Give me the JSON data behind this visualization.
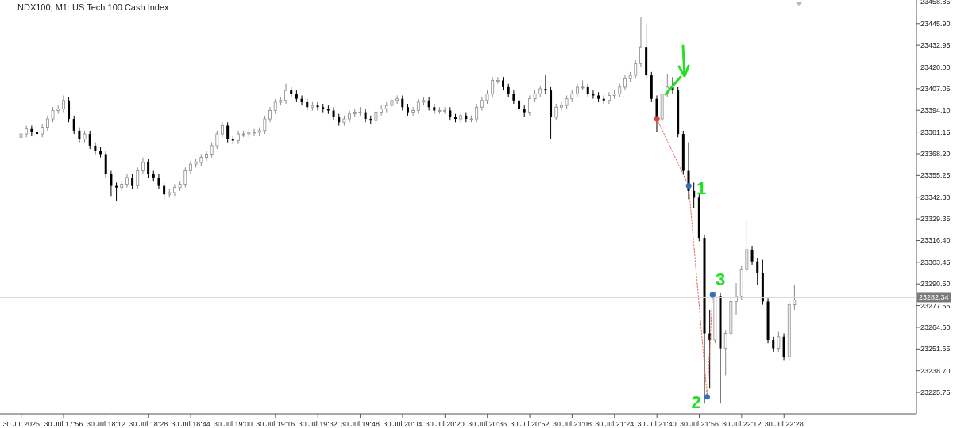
{
  "chart_data": {
    "type": "candlestick",
    "title": "NDX100, M1: US Tech 100 Cash Index",
    "x": [
      "2025-07-30T17:40",
      "2025-07-30T17:42",
      "2025-07-30T17:44",
      "2025-07-30T17:46",
      "2025-07-30T17:48",
      "2025-07-30T17:50",
      "2025-07-30T17:52",
      "2025-07-30T17:54",
      "2025-07-30T17:56",
      "2025-07-30T17:58",
      "2025-07-30T18:00",
      "2025-07-30T18:02",
      "2025-07-30T18:04",
      "2025-07-30T18:06",
      "2025-07-30T18:08",
      "2025-07-30T18:10",
      "2025-07-30T18:12",
      "2025-07-30T18:14",
      "2025-07-30T18:16",
      "2025-07-30T18:18",
      "2025-07-30T18:20",
      "2025-07-30T18:22",
      "2025-07-30T18:24",
      "2025-07-30T18:26",
      "2025-07-30T18:28",
      "2025-07-30T18:30",
      "2025-07-30T18:32",
      "2025-07-30T18:34",
      "2025-07-30T18:36",
      "2025-07-30T18:38",
      "2025-07-30T18:40",
      "2025-07-30T18:42",
      "2025-07-30T18:44",
      "2025-07-30T18:46",
      "2025-07-30T18:48",
      "2025-07-30T18:50",
      "2025-07-30T18:52",
      "2025-07-30T18:54",
      "2025-07-30T18:56",
      "2025-07-30T18:58",
      "2025-07-30T19:00",
      "2025-07-30T19:02",
      "2025-07-30T19:04",
      "2025-07-30T19:06",
      "2025-07-30T19:08",
      "2025-07-30T19:10",
      "2025-07-30T19:12",
      "2025-07-30T19:14",
      "2025-07-30T19:16",
      "2025-07-30T19:18",
      "2025-07-30T19:20",
      "2025-07-30T19:22",
      "2025-07-30T19:24",
      "2025-07-30T19:26",
      "2025-07-30T19:28",
      "2025-07-30T19:30",
      "2025-07-30T19:32",
      "2025-07-30T19:34",
      "2025-07-30T19:36",
      "2025-07-30T19:38",
      "2025-07-30T19:40",
      "2025-07-30T19:42",
      "2025-07-30T19:44",
      "2025-07-30T19:46",
      "2025-07-30T19:48",
      "2025-07-30T19:50",
      "2025-07-30T19:52",
      "2025-07-30T19:54",
      "2025-07-30T19:56",
      "2025-07-30T19:58",
      "2025-07-30T20:00",
      "2025-07-30T20:02",
      "2025-07-30T20:04",
      "2025-07-30T20:06",
      "2025-07-30T20:08",
      "2025-07-30T20:10",
      "2025-07-30T20:12",
      "2025-07-30T20:14",
      "2025-07-30T20:16",
      "2025-07-30T20:18",
      "2025-07-30T20:20",
      "2025-07-30T20:22",
      "2025-07-30T20:24",
      "2025-07-30T20:26",
      "2025-07-30T20:28",
      "2025-07-30T20:30",
      "2025-07-30T20:32",
      "2025-07-30T20:34",
      "2025-07-30T20:36",
      "2025-07-30T20:38",
      "2025-07-30T20:40",
      "2025-07-30T20:42",
      "2025-07-30T20:44",
      "2025-07-30T20:46",
      "2025-07-30T20:48",
      "2025-07-30T20:50",
      "2025-07-30T20:52",
      "2025-07-30T20:54",
      "2025-07-30T20:56",
      "2025-07-30T20:58",
      "2025-07-30T21:00",
      "2025-07-30T21:02",
      "2025-07-30T21:04",
      "2025-07-30T21:06",
      "2025-07-30T21:08",
      "2025-07-30T21:10",
      "2025-07-30T21:12",
      "2025-07-30T21:14",
      "2025-07-30T21:16",
      "2025-07-30T21:18",
      "2025-07-30T21:20",
      "2025-07-30T21:22",
      "2025-07-30T21:24",
      "2025-07-30T21:26",
      "2025-07-30T21:28",
      "2025-07-30T21:30",
      "2025-07-30T21:32",
      "2025-07-30T21:34",
      "2025-07-30T21:36",
      "2025-07-30T21:38",
      "2025-07-30T21:40",
      "2025-07-30T21:42",
      "2025-07-30T21:44",
      "2025-07-30T21:46",
      "2025-07-30T21:48",
      "2025-07-30T21:50",
      "2025-07-30T21:52",
      "2025-07-30T21:54",
      "2025-07-30T21:56",
      "2025-07-30T21:58",
      "2025-07-30T22:00",
      "2025-07-30T22:02",
      "2025-07-30T22:04",
      "2025-07-30T22:06",
      "2025-07-30T22:08",
      "2025-07-30T22:10",
      "2025-07-30T22:12",
      "2025-07-30T22:14",
      "2025-07-30T22:16",
      "2025-07-30T22:18",
      "2025-07-30T22:20",
      "2025-07-30T22:22",
      "2025-07-30T22:24",
      "2025-07-30T22:26",
      "2025-07-30T22:28",
      "2025-07-30T22:30",
      "2025-07-30T22:32"
    ],
    "ohlc": [
      [
        23378,
        23382,
        23376,
        23380
      ],
      [
        23380,
        23385,
        23378,
        23383
      ],
      [
        23383,
        23385,
        23379,
        23381
      ],
      [
        23381,
        23383,
        23377,
        23380
      ],
      [
        23380,
        23386,
        23378,
        23384
      ],
      [
        23384,
        23391,
        23382,
        23389
      ],
      [
        23389,
        23396,
        23387,
        23394
      ],
      [
        23394,
        23397,
        23392,
        23395
      ],
      [
        23395,
        23403,
        23393,
        23400
      ],
      [
        23400,
        23402,
        23387,
        23389
      ],
      [
        23389,
        23391,
        23380,
        23382
      ],
      [
        23382,
        23384,
        23375,
        23377
      ],
      [
        23377,
        23382,
        23375,
        23380
      ],
      [
        23380,
        23382,
        23371,
        23373
      ],
      [
        23373,
        23375,
        23368,
        23370
      ],
      [
        23370,
        23372,
        23366,
        23368
      ],
      [
        23368,
        23370,
        23354,
        23356
      ],
      [
        23356,
        23358,
        23343,
        23349
      ],
      [
        23349,
        23351,
        23340,
        23348
      ],
      [
        23348,
        23352,
        23346,
        23350
      ],
      [
        23350,
        23356,
        23348,
        23354
      ],
      [
        23354,
        23356,
        23347,
        23349
      ],
      [
        23349,
        23360,
        23347,
        23358
      ],
      [
        23358,
        23366,
        23356,
        23363
      ],
      [
        23363,
        23365,
        23354,
        23356
      ],
      [
        23356,
        23358,
        23352,
        23354
      ],
      [
        23354,
        23356,
        23347,
        23349
      ],
      [
        23349,
        23351,
        23341,
        23344
      ],
      [
        23344,
        23347,
        23342,
        23345
      ],
      [
        23345,
        23350,
        23343,
        23348
      ],
      [
        23348,
        23352,
        23346,
        23350
      ],
      [
        23350,
        23360,
        23348,
        23358
      ],
      [
        23358,
        23364,
        23356,
        23362
      ],
      [
        23362,
        23365,
        23360,
        23363
      ],
      [
        23363,
        23368,
        23361,
        23366
      ],
      [
        23366,
        23370,
        23364,
        23368
      ],
      [
        23368,
        23375,
        23366,
        23373
      ],
      [
        23373,
        23382,
        23371,
        23380
      ],
      [
        23380,
        23387,
        23378,
        23385
      ],
      [
        23385,
        23387,
        23375,
        23377
      ],
      [
        23377,
        23379,
        23374,
        23376
      ],
      [
        23376,
        23382,
        23374,
        23380
      ],
      [
        23380,
        23382,
        23378,
        23380
      ],
      [
        23380,
        23383,
        23378,
        23381
      ],
      [
        23381,
        23383,
        23379,
        23381
      ],
      [
        23381,
        23384,
        23379,
        23382
      ],
      [
        23382,
        23391,
        23380,
        23389
      ],
      [
        23389,
        23396,
        23387,
        23394
      ],
      [
        23394,
        23401,
        23392,
        23399
      ],
      [
        23399,
        23402,
        23397,
        23400
      ],
      [
        23400,
        23410,
        23398,
        23406
      ],
      [
        23406,
        23408,
        23402,
        23404
      ],
      [
        23404,
        23406,
        23399,
        23401
      ],
      [
        23401,
        23403,
        23397,
        23399
      ],
      [
        23399,
        23401,
        23394,
        23396
      ],
      [
        23396,
        23399,
        23394,
        23397
      ],
      [
        23397,
        23399,
        23394,
        23396
      ],
      [
        23396,
        23398,
        23393,
        23395
      ],
      [
        23395,
        23397,
        23392,
        23394
      ],
      [
        23394,
        23396,
        23388,
        23390
      ],
      [
        23390,
        23392,
        23385,
        23387
      ],
      [
        23387,
        23391,
        23385,
        23389
      ],
      [
        23389,
        23394,
        23387,
        23392
      ],
      [
        23392,
        23395,
        23390,
        23393
      ],
      [
        23393,
        23396,
        23391,
        23393
      ],
      [
        23393,
        23395,
        23387,
        23389
      ],
      [
        23389,
        23391,
        23386,
        23388
      ],
      [
        23388,
        23395,
        23386,
        23393
      ],
      [
        23393,
        23397,
        23391,
        23395
      ],
      [
        23395,
        23399,
        23393,
        23397
      ],
      [
        23397,
        23402,
        23395,
        23400
      ],
      [
        23400,
        23403,
        23398,
        23401
      ],
      [
        23401,
        23403,
        23394,
        23396
      ],
      [
        23396,
        23398,
        23391,
        23393
      ],
      [
        23393,
        23396,
        23391,
        23394
      ],
      [
        23394,
        23401,
        23392,
        23399
      ],
      [
        23399,
        23402,
        23397,
        23400
      ],
      [
        23400,
        23402,
        23394,
        23396
      ],
      [
        23396,
        23398,
        23392,
        23394
      ],
      [
        23394,
        23396,
        23392,
        23394
      ],
      [
        23394,
        23396,
        23392,
        23394
      ],
      [
        23394,
        23396,
        23388,
        23390
      ],
      [
        23390,
        23392,
        23387,
        23389
      ],
      [
        23389,
        23393,
        23387,
        23391
      ],
      [
        23391,
        23393,
        23387,
        23389
      ],
      [
        23389,
        23391,
        23387,
        23389
      ],
      [
        23389,
        23398,
        23387,
        23396
      ],
      [
        23396,
        23402,
        23394,
        23400
      ],
      [
        23400,
        23406,
        23398,
        23404
      ],
      [
        23404,
        23414,
        23402,
        23412
      ],
      [
        23412,
        23414,
        23410,
        23412
      ],
      [
        23412,
        23414,
        23406,
        23408
      ],
      [
        23408,
        23410,
        23402,
        23404
      ],
      [
        23404,
        23406,
        23398,
        23400
      ],
      [
        23400,
        23402,
        23393,
        23395
      ],
      [
        23395,
        23397,
        23390,
        23393
      ],
      [
        23393,
        23403,
        23391,
        23401
      ],
      [
        23401,
        23406,
        23399,
        23404
      ],
      [
        23404,
        23409,
        23402,
        23407
      ],
      [
        23407,
        23415,
        23404,
        23406
      ],
      [
        23406,
        23408,
        23377,
        23390
      ],
      [
        23390,
        23398,
        23388,
        23396
      ],
      [
        23396,
        23399,
        23394,
        23397
      ],
      [
        23397,
        23403,
        23395,
        23401
      ],
      [
        23401,
        23406,
        23399,
        23404
      ],
      [
        23404,
        23410,
        23402,
        23408
      ],
      [
        23408,
        23412,
        23406,
        23408
      ],
      [
        23408,
        23410,
        23402,
        23404
      ],
      [
        23404,
        23406,
        23401,
        23403
      ],
      [
        23403,
        23405,
        23399,
        23401
      ],
      [
        23401,
        23403,
        23398,
        23400
      ],
      [
        23400,
        23405,
        23398,
        23403
      ],
      [
        23403,
        23406,
        23401,
        23404
      ],
      [
        23404,
        23410,
        23402,
        23408
      ],
      [
        23408,
        23415,
        23406,
        23413
      ],
      [
        23413,
        23417,
        23411,
        23415
      ],
      [
        23415,
        23424,
        23413,
        23422
      ],
      [
        23422,
        23450,
        23420,
        23432
      ],
      [
        23432,
        23446,
        23413,
        23415
      ],
      [
        23415,
        23417,
        23399,
        23401
      ],
      [
        23401,
        23403,
        23381,
        23389
      ],
      [
        23389,
        23406,
        23387,
        23404
      ],
      [
        23404,
        23416,
        23402,
        23408
      ],
      [
        23408,
        23414,
        23404,
        23406
      ],
      [
        23406,
        23408,
        23378,
        23380
      ],
      [
        23380,
        23382,
        23356,
        23358
      ],
      [
        23358,
        23375,
        23341,
        23346
      ],
      [
        23346,
        23351,
        23336,
        23342
      ],
      [
        23342,
        23344,
        23316,
        23318
      ],
      [
        23318,
        23320,
        23219,
        23261
      ],
      [
        23261,
        23275,
        23228,
        23257
      ],
      [
        23257,
        23286,
        23255,
        23283
      ],
      [
        23283,
        23285,
        23219,
        23252
      ],
      [
        23252,
        23263,
        23236,
        23261
      ],
      [
        23261,
        23282,
        23259,
        23280
      ],
      [
        23280,
        23291,
        23272,
        23283
      ],
      [
        23283,
        23301,
        23281,
        23299
      ],
      [
        23299,
        23328,
        23297,
        23311
      ],
      [
        23311,
        23313,
        23302,
        23304
      ],
      [
        23304,
        23306,
        23290,
        23297
      ],
      [
        23297,
        23305,
        23278,
        23280
      ],
      [
        23280,
        23282,
        23255,
        23257
      ],
      [
        23257,
        23259,
        23250,
        23252
      ],
      [
        23252,
        23262,
        23250,
        23259
      ],
      [
        23259,
        23261,
        23245,
        23247
      ],
      [
        23247,
        23280,
        23245,
        23278
      ],
      [
        23278,
        23290,
        23275,
        23281
      ]
    ],
    "series": [
      {
        "type": "line",
        "x": [
          "2025-07-30T21:40",
          "2025-07-30T21:52",
          "2025-07-30T21:59",
          "2025-07-30T22:01"
        ],
        "values": [
          23389,
          23349,
          23223,
          23284
        ],
        "color": "#e86a5a",
        "colors": [
          "#e04040",
          "#3070c0",
          "#3070c0",
          "#3070c0"
        ],
        "marker": "circle",
        "line_style": "dotted"
      }
    ],
    "xlim": [
      "2025-07-30T17:32",
      "2025-07-30T23:18"
    ],
    "xticks": [
      {
        "value": "2025-07-30T17:40",
        "label": "30 Jul 2025"
      },
      {
        "value": "2025-07-30T17:56",
        "label": "30 Jul 17:56"
      },
      {
        "value": "2025-07-30T18:12",
        "label": "30 Jul 18:12"
      },
      {
        "value": "2025-07-30T18:28",
        "label": "30 Jul 18:28"
      },
      {
        "value": "2025-07-30T18:44",
        "label": "30 Jul 18:44"
      },
      {
        "value": "2025-07-30T19:00",
        "label": "30 Jul 19:00"
      },
      {
        "value": "2025-07-30T19:16",
        "label": "30 Jul 19:16"
      },
      {
        "value": "2025-07-30T19:32",
        "label": "30 Jul 19:32"
      },
      {
        "value": "2025-07-30T19:48",
        "label": "30 Jul 19:48"
      },
      {
        "value": "2025-07-30T20:04",
        "label": "30 Jul 20:04"
      },
      {
        "value": "2025-07-30T20:20",
        "label": "30 Jul 20:20"
      },
      {
        "value": "2025-07-30T20:36",
        "label": "30 Jul 20:36"
      },
      {
        "value": "2025-07-30T20:52",
        "label": "30 Jul 20:52"
      },
      {
        "value": "2025-07-30T21:08",
        "label": "30 Jul 21:08"
      },
      {
        "value": "2025-07-30T21:24",
        "label": "30 Jul 21:24"
      },
      {
        "value": "2025-07-30T21:40",
        "label": "30 Jul 21:40"
      },
      {
        "value": "2025-07-30T21:56",
        "label": "30 Jul 21:56"
      },
      {
        "value": "2025-07-30T22:12",
        "label": "30 Jul 22:12"
      },
      {
        "value": "2025-07-30T22:28",
        "label": "30 Jul 22:28"
      }
    ],
    "ylim": [
      23213,
      23460
    ],
    "yticks": [
      {
        "value": 23225.75,
        "label": "23225.75"
      },
      {
        "value": 23238.7,
        "label": "23238.70"
      },
      {
        "value": 23251.65,
        "label": "23251.65"
      },
      {
        "value": 23264.6,
        "label": "23264.60"
      },
      {
        "value": 23277.55,
        "label": "23277.55"
      },
      {
        "value": 23290.5,
        "label": "23290.50"
      },
      {
        "value": 23303.45,
        "label": "23303.45"
      },
      {
        "value": 23316.4,
        "label": "23316.40"
      },
      {
        "value": 23329.35,
        "label": "23329.35"
      },
      {
        "value": 23342.3,
        "label": "23342.30"
      },
      {
        "value": 23355.25,
        "label": "23355.25"
      },
      {
        "value": 23368.2,
        "label": "23368.20"
      },
      {
        "value": 23381.15,
        "label": "23381.15"
      },
      {
        "value": 23394.1,
        "label": "23394.10"
      },
      {
        "value": 23407.05,
        "label": "23407.05"
      },
      {
        "value": 23420,
        "label": "23420.00"
      },
      {
        "value": 23432.95,
        "label": "23432.95"
      },
      {
        "value": 23445.9,
        "label": "23445.90"
      },
      {
        "value": 23458.85,
        "label": "23458.85"
      }
    ],
    "ref_lines": [
      {
        "axis": "y",
        "value": 23282.34,
        "label": "23282.34",
        "color": "#d8d8d8"
      }
    ],
    "annotations": [
      {
        "text": "1",
        "x": "2025-07-30T21:52",
        "y": 23349
      },
      {
        "text": "2",
        "x": "2025-07-30T21:59",
        "y": 23223
      },
      {
        "text": "3",
        "x": "2025-07-30T22:01",
        "y": 23284
      }
    ]
  }
}
